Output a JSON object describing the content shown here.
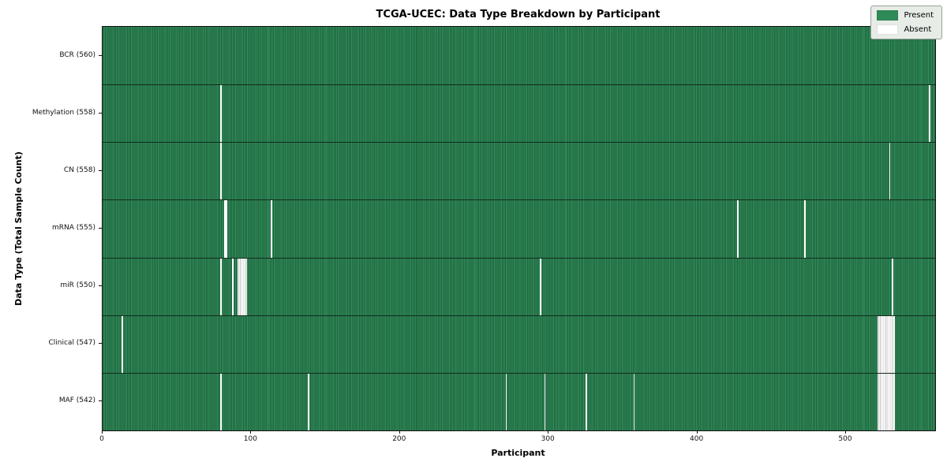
{
  "colors": {
    "present_green": "#2e8b57",
    "present_edge_dark": "#1f5f3d",
    "absent_white": "#ffffff",
    "row_divider": "#132b1d",
    "legend_background": "#e7ece7"
  },
  "chart_data": {
    "type": "heatmap",
    "title": "TCGA-UCEC: Data Type Breakdown by Participant",
    "xlabel": "Participant",
    "ylabel": "Data Type (Total Sample Count)",
    "legend": [
      "Present",
      "Absent"
    ],
    "legend_position": "upper right",
    "grid": false,
    "x_range": [
      0,
      560
    ],
    "x_ticks": [
      0,
      100,
      200,
      300,
      400,
      500
    ],
    "cell_states": [
      "present",
      "absent"
    ],
    "rows": [
      {
        "label": "BCR (560)",
        "data_type": "BCR",
        "present_count": 560,
        "absent_participants": []
      },
      {
        "label": "Methylation (558)",
        "data_type": "Methylation",
        "present_count": 558,
        "absent_participants": [
          79,
          556
        ]
      },
      {
        "label": "CN (558)",
        "data_type": "CN",
        "present_count": 558,
        "absent_participants": [
          79,
          529
        ]
      },
      {
        "label": "mRNA (555)",
        "data_type": "mRNA",
        "present_count": 555,
        "absent_participants": [
          82,
          83,
          113,
          427,
          472
        ]
      },
      {
        "label": "miR (550)",
        "data_type": "miR",
        "present_count": 550,
        "absent_participants": [
          79,
          87,
          91,
          92,
          93,
          94,
          95,
          96,
          294,
          531
        ]
      },
      {
        "label": "Clinical (547)",
        "data_type": "Clinical",
        "present_count": 547,
        "absent_participants": [
          13,
          521,
          522,
          523,
          524,
          525,
          526,
          527,
          528,
          529,
          530,
          531,
          532
        ]
      },
      {
        "label": "MAF (542)",
        "data_type": "MAF",
        "present_count": 542,
        "absent_participants": [
          79,
          138,
          271,
          297,
          325,
          357,
          521,
          522,
          523,
          524,
          525,
          526,
          527,
          528,
          529,
          530,
          531,
          532
        ]
      }
    ]
  }
}
